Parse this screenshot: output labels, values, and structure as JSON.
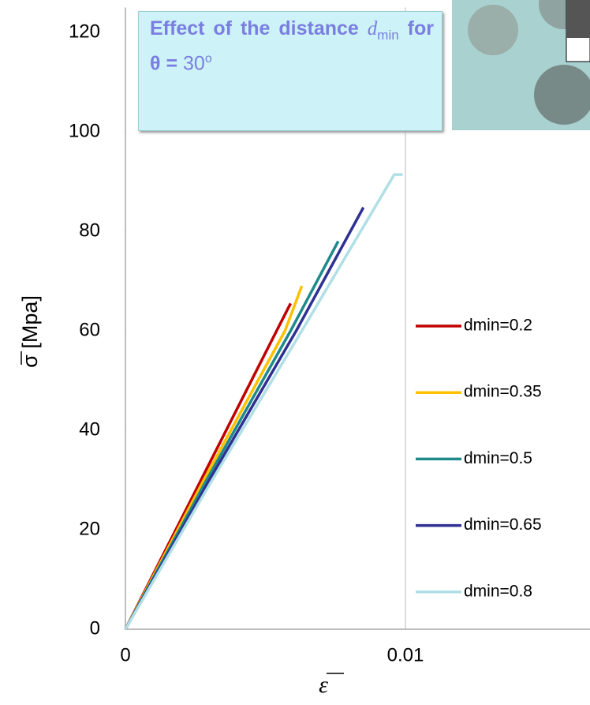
{
  "chart_data": {
    "type": "line",
    "annotation": {
      "text1": "Effect of the distance",
      "var": "d",
      "sub": "min",
      "text2": "for θ =",
      "text3": "30",
      "sup": "o"
    },
    "y_label": "σ [Mpa]",
    "x_label": "ε",
    "xlim": [
      0,
      0.0166
    ],
    "ylim": [
      0,
      125
    ],
    "xticks": [
      0,
      0.01
    ],
    "yticks": [
      0,
      20,
      40,
      60,
      80,
      100,
      120
    ],
    "x_grid": true,
    "legend": "right",
    "series": [
      {
        "name": "dmin=0.2",
        "color": "#c00000",
        "x": [
          0,
          0.0027,
          0.0054,
          0.0059
        ],
        "values": [
          0,
          30,
          60,
          65.5
        ]
      },
      {
        "name": "dmin=0.35",
        "color": "#ffc000",
        "x": [
          0,
          0.0028,
          0.0057,
          0.0063
        ],
        "values": [
          0,
          30,
          60,
          69
        ]
      },
      {
        "name": "dmin=0.5",
        "color": "#1f8a8a",
        "x": [
          0,
          0.0029,
          0.0059,
          0.0076
        ],
        "values": [
          0,
          30,
          60,
          78
        ]
      },
      {
        "name": "dmin=0.65",
        "color": "#2e3192",
        "x": [
          0,
          0.003,
          0.0061,
          0.0085
        ],
        "values": [
          0,
          30,
          60,
          84.8
        ]
      },
      {
        "name": "dmin=0.8",
        "color": "#b0dfe6",
        "x": [
          0,
          0.0031,
          0.0063,
          0.0096,
          0.0099
        ],
        "values": [
          0,
          30,
          60,
          91.4,
          91.4
        ]
      }
    ]
  }
}
